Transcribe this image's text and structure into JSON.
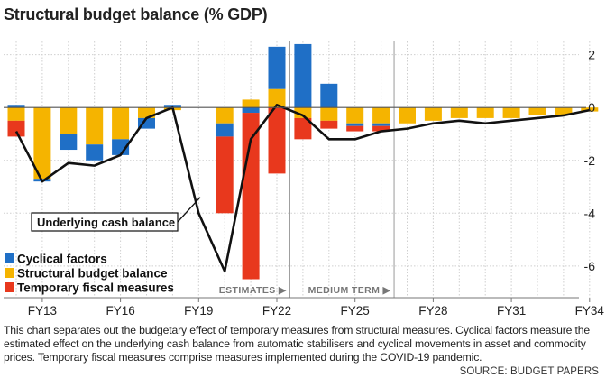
{
  "title": "Structural budget balance (% GDP)",
  "caption": "This chart separates out the budgetary effect of temporary measures from structural measures. Cyclical factors measure the estimated effect on the underlying cash balance from automatic stabilisers and cyclical movements in asset and commodity prices. Temporary fiscal measures comprise measures implemented during the COVID-19 pandemic.",
  "source": "SOURCE: BUDGET PAPERS",
  "colors": {
    "cyclical": "#1f6fc6",
    "structural": "#f5b400",
    "temporary": "#e8381d",
    "line": "#111111",
    "grid": "#cfcfcf"
  },
  "chart_data": {
    "type": "bar",
    "stacked": true,
    "x": [
      "FY12",
      "FY13",
      "FY14",
      "FY15",
      "FY16",
      "FY17",
      "FY18",
      "FY19",
      "FY20",
      "FY21",
      "FY22",
      "FY23",
      "FY24",
      "FY25",
      "FY26",
      "FY27",
      "FY28",
      "FY29",
      "FY30",
      "FY31",
      "FY32",
      "FY33",
      "FY34"
    ],
    "x_tick_labels": [
      "FY13",
      "FY16",
      "FY19",
      "FY22",
      "FY25",
      "FY28",
      "FY31",
      "FY34"
    ],
    "series": [
      {
        "name": "Cyclical factors",
        "key": "cyclical",
        "values": [
          0.1,
          -0.1,
          -0.6,
          -0.6,
          -0.6,
          -0.4,
          0.1,
          0.0,
          -0.5,
          -0.2,
          1.6,
          2.4,
          0.9,
          -0.1,
          -0.1,
          0.0,
          0.0,
          0.0,
          0.0,
          0.0,
          0.0,
          0.0,
          0.0
        ]
      },
      {
        "name": "Structural budget balance",
        "key": "structural",
        "values": [
          -0.5,
          -2.7,
          -1.0,
          -1.4,
          -1.2,
          -0.4,
          -0.1,
          0.0,
          -0.6,
          0.3,
          0.7,
          -0.4,
          -0.5,
          -0.6,
          -0.6,
          -0.6,
          -0.5,
          -0.4,
          -0.4,
          -0.4,
          -0.3,
          -0.3,
          -0.15
        ]
      },
      {
        "name": "Temporary fiscal measures",
        "key": "temporary",
        "values": [
          -0.6,
          0.0,
          0.0,
          0.0,
          0.0,
          0.0,
          0.0,
          0.0,
          -2.9,
          -6.3,
          -2.5,
          -0.8,
          -0.3,
          -0.2,
          -0.2,
          0.0,
          0.0,
          0.0,
          0.0,
          0.0,
          0.0,
          0.0,
          0.0
        ]
      }
    ],
    "line": {
      "name": "Underlying cash balance",
      "values": [
        -0.9,
        -2.8,
        -2.1,
        -2.2,
        -1.8,
        -0.4,
        0.0,
        -4.0,
        -6.2,
        -1.2,
        0.1,
        -0.3,
        -1.2,
        -1.2,
        -0.9,
        -0.8,
        -0.6,
        -0.5,
        -0.6,
        -0.5,
        -0.4,
        -0.3,
        -0.1
      ]
    },
    "ylim": [
      -7.2,
      2.5
    ],
    "yticks": [
      2,
      0,
      -2,
      -4,
      -6
    ],
    "xlabel": "",
    "ylabel": "",
    "annotations": {
      "line_label": "Underlying cash balance",
      "estimates": "ESTIMATES",
      "medium_term": "MEDIUM TERM"
    },
    "legend": {
      "position": "bottom-left",
      "entries": [
        "Cyclical factors",
        "Structural budget balance",
        "Temporary fiscal measures"
      ]
    },
    "grid": true
  }
}
